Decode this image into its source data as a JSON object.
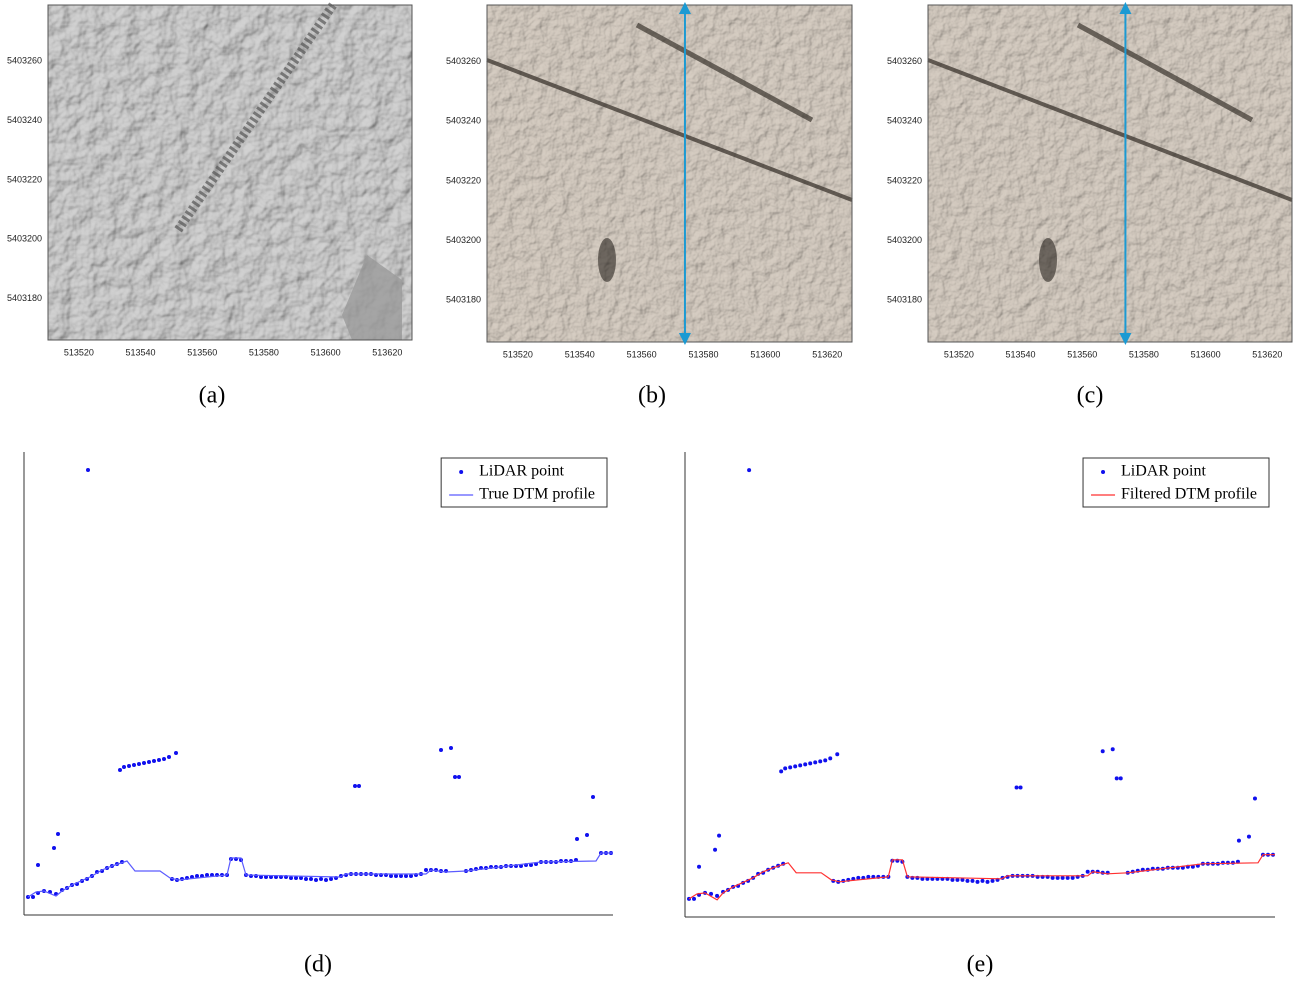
{
  "chart_data": [
    {
      "type": "image",
      "label": "(a)",
      "xlim": [
        513510,
        513628
      ],
      "ylim": [
        5403166,
        5403279
      ],
      "xticks": [
        513520,
        513540,
        513560,
        513580,
        513600,
        513620
      ],
      "yticks": [
        5403180,
        5403200,
        5403220,
        5403240,
        5403260
      ]
    },
    {
      "type": "image",
      "label": "(b)",
      "xlim": [
        513510,
        513628
      ],
      "ylim": [
        5403166,
        5403279
      ],
      "xticks": [
        513520,
        513540,
        513560,
        513580,
        513600,
        513620
      ],
      "yticks": [
        5403180,
        5403200,
        5403220,
        5403240,
        5403260
      ],
      "profile_x": 513574,
      "profile_color": "#1b9ad3"
    },
    {
      "type": "image",
      "label": "(c)",
      "xlim": [
        513510,
        513628
      ],
      "ylim": [
        5403166,
        5403279
      ],
      "xticks": [
        513520,
        513540,
        513560,
        513580,
        513600,
        513620
      ],
      "yticks": [
        5403180,
        5403200,
        5403220,
        5403240,
        5403260
      ],
      "profile_x": 513574,
      "profile_color": "#1b9ad3"
    },
    {
      "type": "scatter",
      "label": "(d)",
      "xlim": [
        0,
        589
      ],
      "ylim": [
        0,
        463
      ],
      "legend": "upper right",
      "series": [
        {
          "name": "LiDAR point",
          "color": "#1010ee",
          "x": [
            4,
            9,
            14,
            20,
            26,
            32,
            38,
            43,
            48,
            53,
            58,
            63,
            68,
            73,
            78,
            83,
            88,
            93,
            98,
            148,
            153,
            158,
            163,
            168,
            173,
            178,
            183,
            188,
            193,
            198,
            203,
            207,
            212,
            217,
            222,
            227,
            232,
            237,
            242,
            247,
            252,
            257,
            262,
            267,
            272,
            277,
            282,
            287,
            292,
            297,
            302,
            307,
            312,
            317,
            322,
            327,
            332,
            337,
            342,
            347,
            352,
            357,
            362,
            367,
            372,
            377,
            382,
            387,
            392,
            397,
            402,
            407,
            412,
            417,
            422,
            442,
            447,
            452,
            457,
            462,
            467,
            472,
            477,
            482,
            487,
            492,
            497,
            502,
            507,
            512,
            517,
            522,
            527,
            532,
            537,
            542,
            547,
            552,
            577,
            582,
            587,
            64,
            96,
            100,
            105,
            110,
            115,
            120,
            125,
            130,
            135,
            140,
            145,
            152,
            14,
            30,
            34,
            331,
            335,
            417,
            427,
            431,
            435,
            553,
            563,
            569
          ],
          "values": [
            18,
            18,
            22,
            24,
            23,
            21,
            25,
            27,
            30,
            31,
            34,
            36,
            39,
            43,
            44,
            47,
            49,
            51,
            53,
            36,
            35,
            36,
            37,
            38,
            39,
            39,
            40,
            40,
            40,
            40,
            40,
            56,
            56,
            55,
            40,
            39,
            39,
            38,
            38,
            38,
            38,
            38,
            38,
            37,
            37,
            37,
            36,
            36,
            35,
            36,
            35,
            36,
            37,
            39,
            40,
            41,
            41,
            41,
            41,
            41,
            40,
            40,
            40,
            39,
            39,
            39,
            39,
            39,
            40,
            41,
            45,
            45,
            45,
            44,
            44,
            44,
            45,
            46,
            47,
            47,
            48,
            48,
            48,
            49,
            49,
            49,
            49,
            50,
            50,
            51,
            53,
            53,
            53,
            53,
            54,
            54,
            54,
            55,
            62,
            62,
            62,
            445,
            145,
            148,
            149,
            150,
            151,
            152,
            153,
            154,
            155,
            156,
            158,
            162,
            50,
            67,
            81,
            129,
            129,
            165,
            167,
            138,
            138,
            76,
            80,
            118
          ]
        },
        {
          "name": "True DTM profile",
          "type": "line",
          "color": "#5b5bff",
          "x": [
            4,
            12,
            20,
            32,
            38,
            48,
            68,
            78,
            88,
            103,
            111,
            136,
            146,
            154,
            203,
            207,
            217,
            222,
            316,
            322,
            402,
            407,
            422,
            442,
            517,
            572,
            577,
            589
          ],
          "values": [
            18,
            23,
            24,
            19,
            24,
            30,
            39,
            45,
            49,
            54,
            44,
            44,
            37,
            35,
            40,
            57,
            57,
            40,
            38,
            41,
            41,
            45,
            43,
            44,
            53,
            54,
            62,
            62
          ]
        }
      ]
    },
    {
      "type": "scatter",
      "label": "(e)",
      "xlim": [
        0,
        589
      ],
      "ylim": [
        0,
        463
      ],
      "legend": "upper right",
      "series": [
        {
          "name": "LiDAR point",
          "color": "#1010ee",
          "x": [
            4,
            9,
            14,
            20,
            26,
            32,
            38,
            43,
            48,
            53,
            58,
            63,
            68,
            73,
            78,
            83,
            88,
            93,
            98,
            148,
            153,
            158,
            163,
            168,
            173,
            178,
            183,
            188,
            193,
            198,
            203,
            207,
            212,
            217,
            222,
            227,
            232,
            237,
            242,
            247,
            252,
            257,
            262,
            267,
            272,
            277,
            282,
            287,
            292,
            297,
            302,
            307,
            312,
            317,
            322,
            327,
            332,
            337,
            342,
            347,
            352,
            357,
            362,
            367,
            372,
            377,
            382,
            387,
            392,
            397,
            402,
            407,
            412,
            417,
            422,
            442,
            447,
            452,
            457,
            462,
            467,
            472,
            477,
            482,
            487,
            492,
            497,
            502,
            507,
            512,
            517,
            522,
            527,
            532,
            537,
            542,
            547,
            552,
            577,
            582,
            587,
            64,
            96,
            100,
            105,
            110,
            115,
            120,
            125,
            130,
            135,
            140,
            145,
            152,
            14,
            30,
            34,
            331,
            335,
            417,
            427,
            431,
            435,
            553,
            563,
            569
          ],
          "values": [
            18,
            18,
            22,
            24,
            23,
            21,
            25,
            27,
            30,
            31,
            34,
            36,
            39,
            43,
            44,
            47,
            49,
            51,
            53,
            36,
            35,
            36,
            37,
            38,
            39,
            39,
            40,
            40,
            40,
            40,
            40,
            56,
            56,
            55,
            40,
            39,
            39,
            38,
            38,
            38,
            38,
            38,
            38,
            37,
            37,
            37,
            36,
            36,
            35,
            36,
            35,
            36,
            37,
            39,
            40,
            41,
            41,
            41,
            41,
            41,
            40,
            40,
            40,
            39,
            39,
            39,
            39,
            39,
            40,
            41,
            45,
            45,
            45,
            44,
            44,
            44,
            45,
            46,
            47,
            47,
            48,
            48,
            48,
            49,
            49,
            49,
            49,
            50,
            50,
            51,
            53,
            53,
            53,
            53,
            54,
            54,
            54,
            55,
            62,
            62,
            62,
            445,
            145,
            148,
            149,
            150,
            151,
            152,
            153,
            154,
            155,
            156,
            158,
            162,
            50,
            67,
            81,
            129,
            129,
            165,
            167,
            138,
            138,
            76,
            80,
            118
          ]
        },
        {
          "name": "Filtered DTM profile",
          "type": "line",
          "color": "#ff3030",
          "x": [
            4,
            12,
            20,
            32,
            38,
            48,
            68,
            78,
            88,
            103,
            111,
            136,
            146,
            154,
            203,
            207,
            217,
            222,
            316,
            322,
            402,
            407,
            422,
            442,
            517,
            572,
            577,
            589
          ],
          "values": [
            18,
            23,
            24,
            17,
            24,
            30,
            39,
            45,
            49,
            54,
            44,
            44,
            37,
            35,
            40,
            57,
            57,
            40,
            38,
            41,
            41,
            45,
            43,
            44,
            53,
            54,
            62,
            62
          ]
        }
      ]
    }
  ]
}
